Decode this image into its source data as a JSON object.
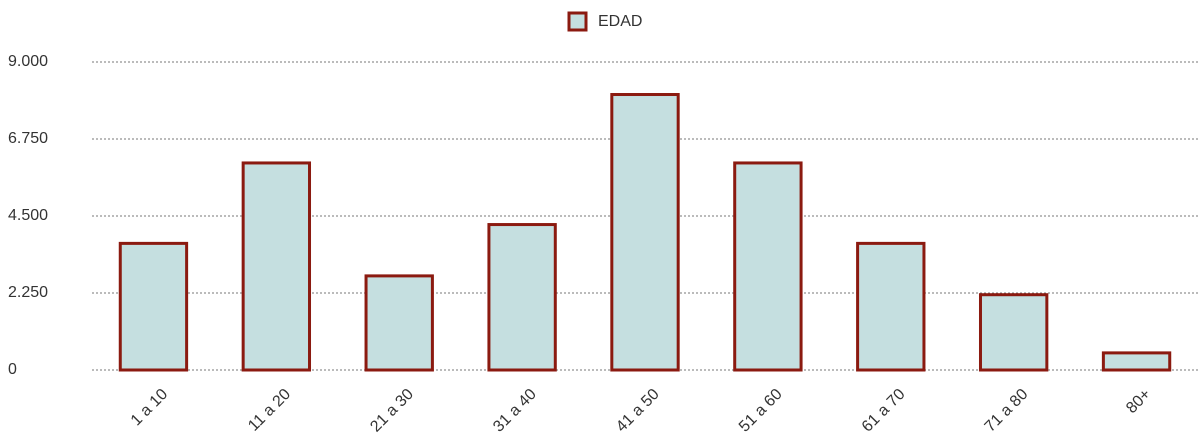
{
  "chart_data": {
    "type": "bar",
    "series": [
      {
        "name": "EDAD",
        "color": "#c5dfe0",
        "edge_color": "#8b1a10",
        "values": [
          3700,
          6050,
          2750,
          4250,
          8050,
          6050,
          3700,
          2200,
          500
        ]
      }
    ],
    "categories": [
      "1 a 10",
      "11 a 20",
      "21 a 30",
      "31 a 40",
      "41 a 50",
      "51 a 60",
      "61 a 70",
      "71 a 80",
      "80+"
    ],
    "ylim": [
      0,
      9000
    ],
    "yticks": [
      0,
      {
        "value": 2250,
        "label": "2.250"
      },
      {
        "value": 4500,
        "label": "4.500"
      },
      {
        "value": 6750,
        "label": "6.750"
      },
      {
        "value": 9000,
        "label": "9.000"
      }
    ],
    "grid": true,
    "legend": "top"
  }
}
